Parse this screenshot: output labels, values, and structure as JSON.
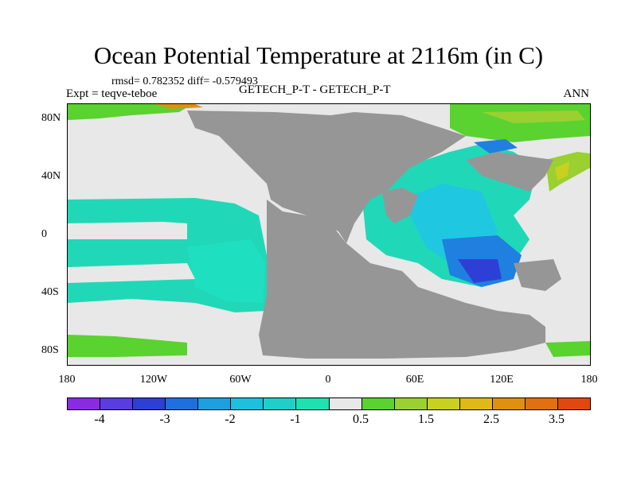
{
  "title": "Ocean Potential Temperature at 2116m (in C)",
  "stats": "rmsd= 0.782352 diff= -0.579493",
  "experiment": "Expt = teqve-teboe",
  "center_label": "GETECH_P-T - GETECH_P-T",
  "period": "ANN",
  "y_ticks": [
    "80N",
    "40N",
    "0",
    "40S",
    "80S"
  ],
  "x_ticks": [
    "180",
    "120W",
    "60W",
    "0",
    "60E",
    "120E",
    "180"
  ],
  "colorbar": {
    "labels": [
      "-4",
      "-3",
      "-2",
      "-1",
      "0.5",
      "1.5",
      "2.5",
      "3.5"
    ],
    "colors": [
      "#8a2be2",
      "#5a3de0",
      "#2e3fd6",
      "#1f6fe0",
      "#1ca0e0",
      "#1ec0e0",
      "#20d0c8",
      "#1ee0b0",
      "#e8e8e8",
      "#5ad230",
      "#9ad030",
      "#c8d020",
      "#e0b818",
      "#e09010",
      "#e07010",
      "#e04810"
    ]
  },
  "chart_data": {
    "type": "heatmap",
    "title": "Ocean Potential Temperature at 2116m (in C)",
    "xlim": [
      -180,
      180
    ],
    "ylim": [
      -90,
      90
    ],
    "levels": [
      -4.5,
      -4,
      -3.5,
      -3,
      -2.5,
      -2,
      -1.5,
      -1,
      -0.5,
      0.5,
      1,
      1.5,
      2,
      2.5,
      3,
      3.5,
      4
    ],
    "rmsd": 0.782352,
    "diff": -0.579493
  },
  "colors": {
    "land": "#969696",
    "near_zero": "#e8e8e8",
    "cool_teal": "#20d8b8",
    "cool_cyan": "#1fc8e0",
    "cool_blue": "#1f80e0",
    "deep_blue": "#2e3fd6",
    "warm_green": "#5ad230",
    "warm_yellow": "#c8d020",
    "warm_orange": "#e09010"
  }
}
